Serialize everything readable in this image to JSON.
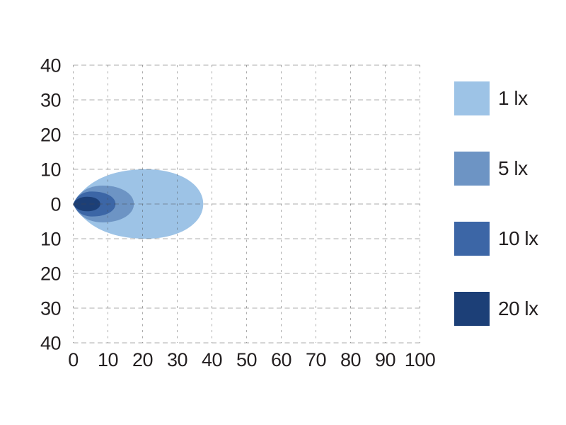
{
  "chart_data": {
    "type": "contour",
    "subtype": "isolux-beam-pattern",
    "title": "",
    "xlabel": "",
    "ylabel": "",
    "x_range": [
      0,
      100
    ],
    "y_range": [
      -40,
      40
    ],
    "grid": {
      "visible": true,
      "style": "dashed",
      "step": 10,
      "color_rgba": "rgba(70,70,70,0.45)"
    },
    "x_ticks": [
      "0",
      "10",
      "20",
      "30",
      "40",
      "50",
      "60",
      "70",
      "80",
      "90",
      "100"
    ],
    "y_ticks": [
      "40",
      "30",
      "20",
      "10",
      "0",
      "10",
      "20",
      "30",
      "40"
    ],
    "y_tick_values": [
      40,
      30,
      20,
      10,
      0,
      -10,
      -20,
      -30,
      -40
    ],
    "axis_text_color": "#231f20",
    "legend": {
      "position": "right",
      "entries": [
        {
          "label": "1 lx",
          "color": "#9DC3E6"
        },
        {
          "label": "5 lx",
          "color": "#6D94C4"
        },
        {
          "label": "10 lx",
          "color": "#3C66A6"
        },
        {
          "label": "20 lx",
          "color": "#1C3F77"
        }
      ]
    },
    "contours": [
      {
        "label": "1 lx",
        "level_lx": 1,
        "color": "#9DC3E6",
        "x_tip": 0,
        "x_max": 37.5,
        "x_peak": 21,
        "y_half_width": 10
      },
      {
        "label": "5 lx",
        "level_lx": 5,
        "color": "#6D94C4",
        "x_tip": 0,
        "x_max": 17.5,
        "x_peak": 8.5,
        "y_half_width": 5.3
      },
      {
        "label": "10 lx",
        "level_lx": 10,
        "color": "#3C66A6",
        "x_tip": 0,
        "x_max": 12.2,
        "x_peak": 5.5,
        "y_half_width": 3.6
      },
      {
        "label": "20 lx",
        "level_lx": 20,
        "color": "#1C3F77",
        "x_tip": 0,
        "x_max": 7.8,
        "x_peak": 4,
        "y_half_width": 2.1
      }
    ]
  }
}
